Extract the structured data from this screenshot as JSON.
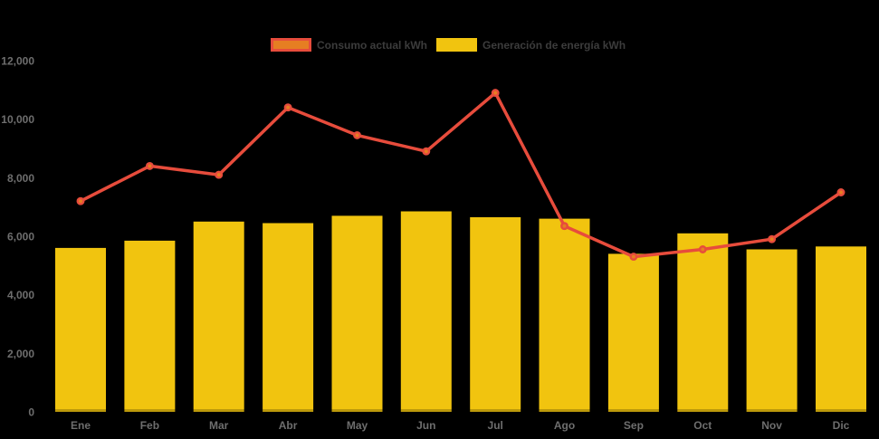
{
  "chart_data": {
    "type": "combo-bar-line",
    "title": "",
    "xlabel": "",
    "ylabel": "",
    "categories": [
      "Ene",
      "Feb",
      "Mar",
      "Abr",
      "May",
      "Jun",
      "Jul",
      "Ago",
      "Sep",
      "Oct",
      "Nov",
      "Dic"
    ],
    "series": [
      {
        "name": "Consumo actual kWh",
        "type": "line",
        "color": "#e74c3c",
        "marker_color": "#e67e22",
        "values": [
          7200,
          8400,
          8100,
          10400,
          9450,
          8900,
          10900,
          6350,
          5300,
          5550,
          5900,
          7500
        ]
      },
      {
        "name": "Generación de energía kWh",
        "type": "bar",
        "color": "#f1c40f",
        "values": [
          5600,
          5850,
          6500,
          6450,
          6700,
          6850,
          6650,
          6600,
          5400,
          6100,
          5550,
          5650
        ]
      }
    ],
    "ylim": [
      0,
      12000
    ],
    "ytick_values": [
      0,
      2000,
      4000,
      6000,
      8000,
      10000,
      12000
    ],
    "ytick_labels": [
      "0",
      "2,000",
      "4,000",
      "6,000",
      "8,000",
      "10,000",
      "12,000"
    ],
    "grid": false,
    "legend_position": "top-center",
    "colors": {
      "background": "#000000",
      "axis_label": "#6e6e6e",
      "legend_label": "#3c3c3c"
    }
  }
}
